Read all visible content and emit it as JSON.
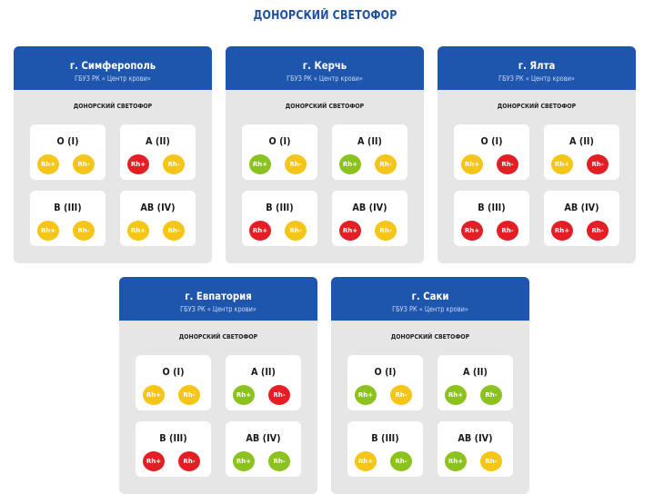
{
  "title": "ДОНОРСКИЙ СВЕТОФОР",
  "colors": {
    "yellow": "#f5c518",
    "red": "#e31e24",
    "green": "#8cc21f",
    "header": "#1f56ad"
  },
  "cards": [
    {
      "city": "г. Симферополь",
      "org": "ГБУЗ РК « Центр крови»",
      "subtitle": "ДОНОРСКИЙ СВЕТОФОР",
      "groups": [
        {
          "label": "O (I)",
          "pos": "Rh+",
          "pos_color": "yellow",
          "neg": "Rh-",
          "neg_color": "yellow"
        },
        {
          "label": "A (II)",
          "pos": "Rh+",
          "pos_color": "red",
          "neg": "Rh-",
          "neg_color": "yellow"
        },
        {
          "label": "B (III)",
          "pos": "Rh+",
          "pos_color": "yellow",
          "neg": "Rh-",
          "neg_color": "yellow"
        },
        {
          "label": "AB (IV)",
          "pos": "Rh+",
          "pos_color": "yellow",
          "neg": "Rh-",
          "neg_color": "yellow"
        }
      ]
    },
    {
      "city": "г. Керчь",
      "org": "ГБУЗ РК « Центр крови»",
      "subtitle": "ДОНОРСКИЙ СВЕТОФОР",
      "groups": [
        {
          "label": "O (I)",
          "pos": "Rh+",
          "pos_color": "green",
          "neg": "Rh-",
          "neg_color": "yellow"
        },
        {
          "label": "A (II)",
          "pos": "Rh+",
          "pos_color": "green",
          "neg": "Rh-",
          "neg_color": "yellow"
        },
        {
          "label": "B (III)",
          "pos": "Rh+",
          "pos_color": "red",
          "neg": "Rh-",
          "neg_color": "yellow"
        },
        {
          "label": "AB (IV)",
          "pos": "Rh+",
          "pos_color": "red",
          "neg": "Rh-",
          "neg_color": "yellow"
        }
      ]
    },
    {
      "city": "г. Ялта",
      "org": "ГБУЗ РК « Центр крови»",
      "subtitle": "ДОНОРСКИЙ СВЕТОФОР",
      "groups": [
        {
          "label": "O (I)",
          "pos": "Rh+",
          "pos_color": "yellow",
          "neg": "Rh-",
          "neg_color": "red"
        },
        {
          "label": "A (II)",
          "pos": "Rh+",
          "pos_color": "yellow",
          "neg": "Rh-",
          "neg_color": "red"
        },
        {
          "label": "B (III)",
          "pos": "Rh+",
          "pos_color": "red",
          "neg": "Rh-",
          "neg_color": "red"
        },
        {
          "label": "AB (IV)",
          "pos": "Rh+",
          "pos_color": "red",
          "neg": "Rh-",
          "neg_color": "red"
        }
      ]
    },
    {
      "city": "г. Евпатория",
      "org": "ГБУЗ РК « Центр крови»",
      "subtitle": "ДОНОРСКИЙ СВЕТОФОР",
      "groups": [
        {
          "label": "O (I)",
          "pos": "Rh+",
          "pos_color": "yellow",
          "neg": "Rh-",
          "neg_color": "yellow"
        },
        {
          "label": "A (II)",
          "pos": "Rh+",
          "pos_color": "green",
          "neg": "Rh-",
          "neg_color": "red"
        },
        {
          "label": "B (III)",
          "pos": "Rh+",
          "pos_color": "red",
          "neg": "Rh-",
          "neg_color": "red"
        },
        {
          "label": "AB (IV)",
          "pos": "Rh+",
          "pos_color": "green",
          "neg": "Rh-",
          "neg_color": "green"
        }
      ]
    },
    {
      "city": "г. Саки",
      "org": "ГБУЗ РК « Центр крови»",
      "subtitle": "ДОНОРСКИЙ СВЕТОФОР",
      "groups": [
        {
          "label": "O (I)",
          "pos": "Rh+",
          "pos_color": "green",
          "neg": "Rh-",
          "neg_color": "yellow"
        },
        {
          "label": "A (II)",
          "pos": "Rh+",
          "pos_color": "green",
          "neg": "Rh-",
          "neg_color": "green"
        },
        {
          "label": "B (III)",
          "pos": "Rh+",
          "pos_color": "yellow",
          "neg": "Rh-",
          "neg_color": "green"
        },
        {
          "label": "AB (IV)",
          "pos": "Rh+",
          "pos_color": "green",
          "neg": "Rh-",
          "neg_color": "yellow"
        }
      ]
    }
  ]
}
